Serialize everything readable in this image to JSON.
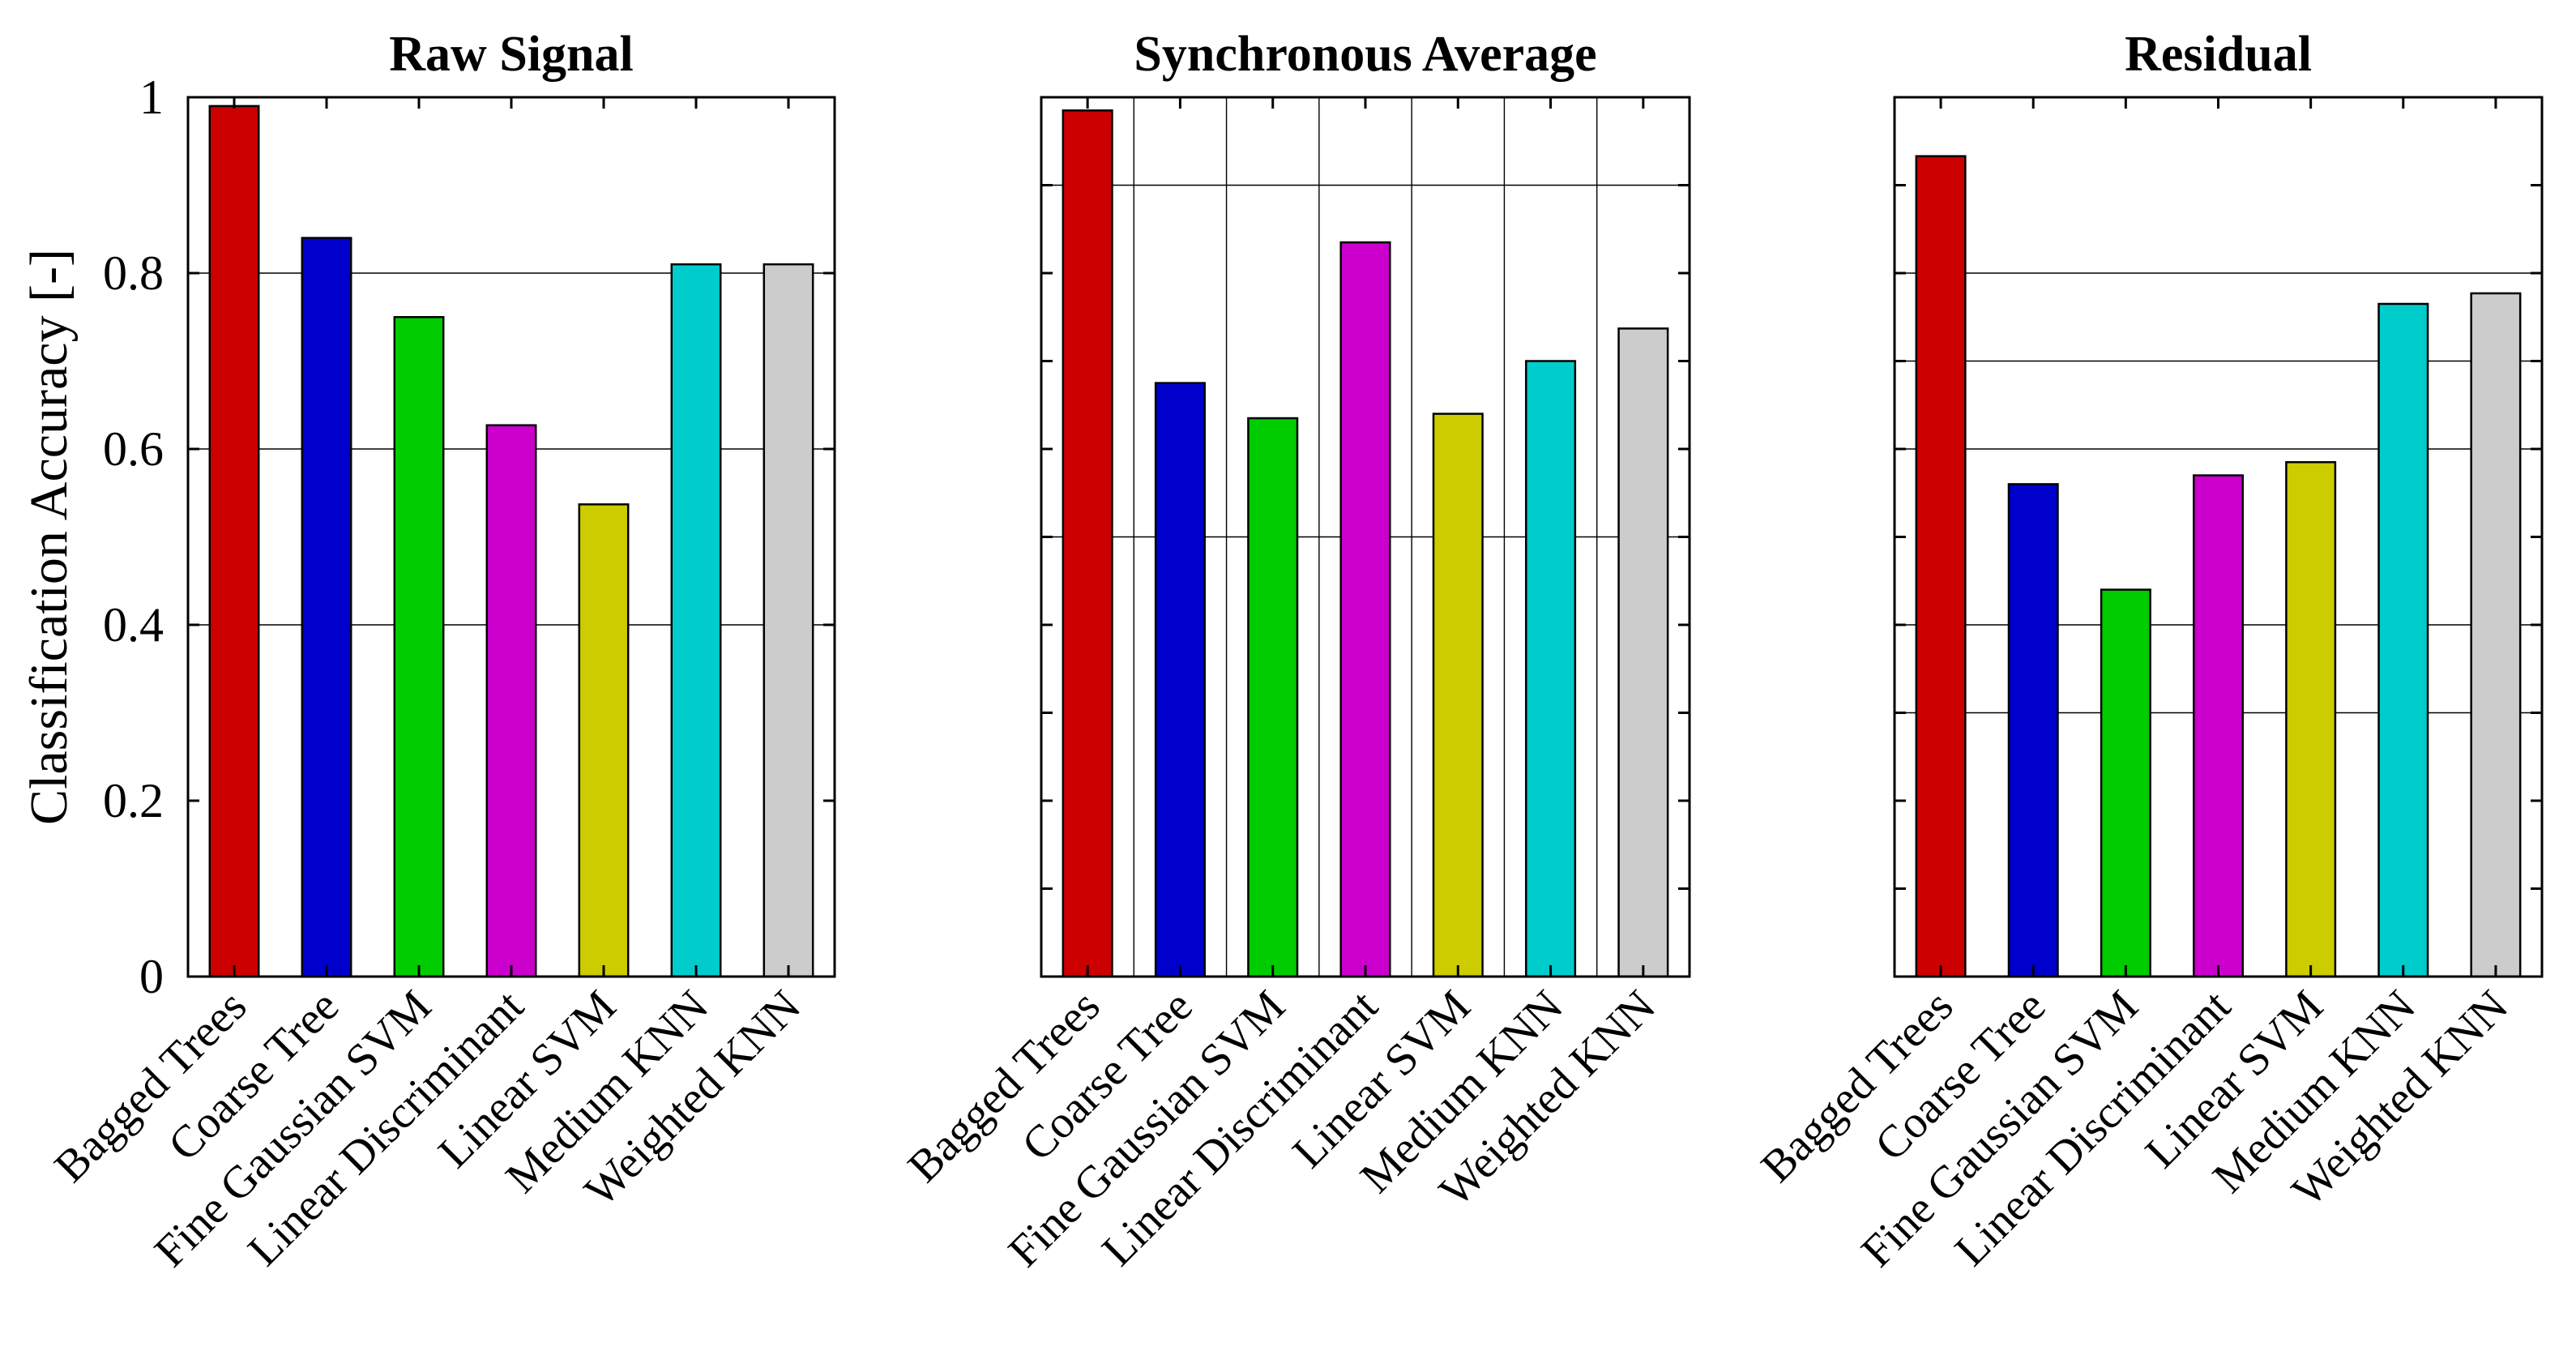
{
  "chart_data": [
    {
      "type": "bar",
      "title": "Raw Signal",
      "ylabel": "Classification Accuracy [-]",
      "xlabel": "",
      "ylim": [
        0,
        1
      ],
      "yticks": [
        0,
        0.2,
        0.4,
        0.6,
        0.8,
        1
      ],
      "ytick_labels": [
        "0",
        "0.2",
        "0.4",
        "0.6",
        "0.8",
        "1"
      ],
      "categories": [
        "Bagged Trees",
        "Coarse Tree",
        "Fine Gaussian SVM",
        "Linear Discriminant",
        "Linear SVM",
        "Medium KNN",
        "Weighted KNN"
      ],
      "values": [
        0.99,
        0.84,
        0.75,
        0.627,
        0.537,
        0.81,
        0.81
      ],
      "colors": [
        "#cc0000",
        "#0000cc",
        "#00cc00",
        "#cc00cc",
        "#cccc00",
        "#00cccc",
        "#cccccc"
      ],
      "grid_y": [
        0.4,
        0.6,
        0.8
      ],
      "grid_x": []
    },
    {
      "type": "bar",
      "title": "Synchronous Average",
      "ylabel": "",
      "xlabel": "",
      "ylim": [
        0,
        1
      ],
      "yticks": [
        0,
        0.1,
        0.2,
        0.3,
        0.4,
        0.5,
        0.6,
        0.7,
        0.8,
        0.9,
        1
      ],
      "ytick_labels": [],
      "categories": [
        "Bagged Trees",
        "Coarse Tree",
        "Fine Gaussian SVM",
        "Linear Discriminant",
        "Linear SVM",
        "Medium KNN",
        "Weighted KNN"
      ],
      "values": [
        0.985,
        0.675,
        0.635,
        0.835,
        0.64,
        0.7,
        0.737
      ],
      "colors": [
        "#cc0000",
        "#0000cc",
        "#00cc00",
        "#cc00cc",
        "#cccc00",
        "#00cccc",
        "#cccccc"
      ],
      "grid_y": [
        0.5,
        0.9
      ],
      "grid_x": [
        1.5,
        2.5,
        3.5,
        4.5,
        5.5,
        6.5
      ]
    },
    {
      "type": "bar",
      "title": "Residual",
      "ylabel": "",
      "xlabel": "",
      "ylim": [
        0,
        1
      ],
      "yticks": [
        0,
        0.1,
        0.2,
        0.3,
        0.4,
        0.5,
        0.6,
        0.7,
        0.8,
        0.9,
        1
      ],
      "ytick_labels": [],
      "categories": [
        "Bagged Trees",
        "Coarse Tree",
        "Fine Gaussian SVM",
        "Linear Discriminant",
        "Linear SVM",
        "Medium KNN",
        "Weighted KNN"
      ],
      "values": [
        0.933,
        0.56,
        0.44,
        0.57,
        0.585,
        0.765,
        0.777
      ],
      "colors": [
        "#cc0000",
        "#0000cc",
        "#00cc00",
        "#cc00cc",
        "#cccc00",
        "#00cccc",
        "#cccccc"
      ],
      "grid_y": [
        0.3,
        0.4,
        0.6,
        0.7,
        0.8
      ],
      "grid_x": []
    }
  ]
}
